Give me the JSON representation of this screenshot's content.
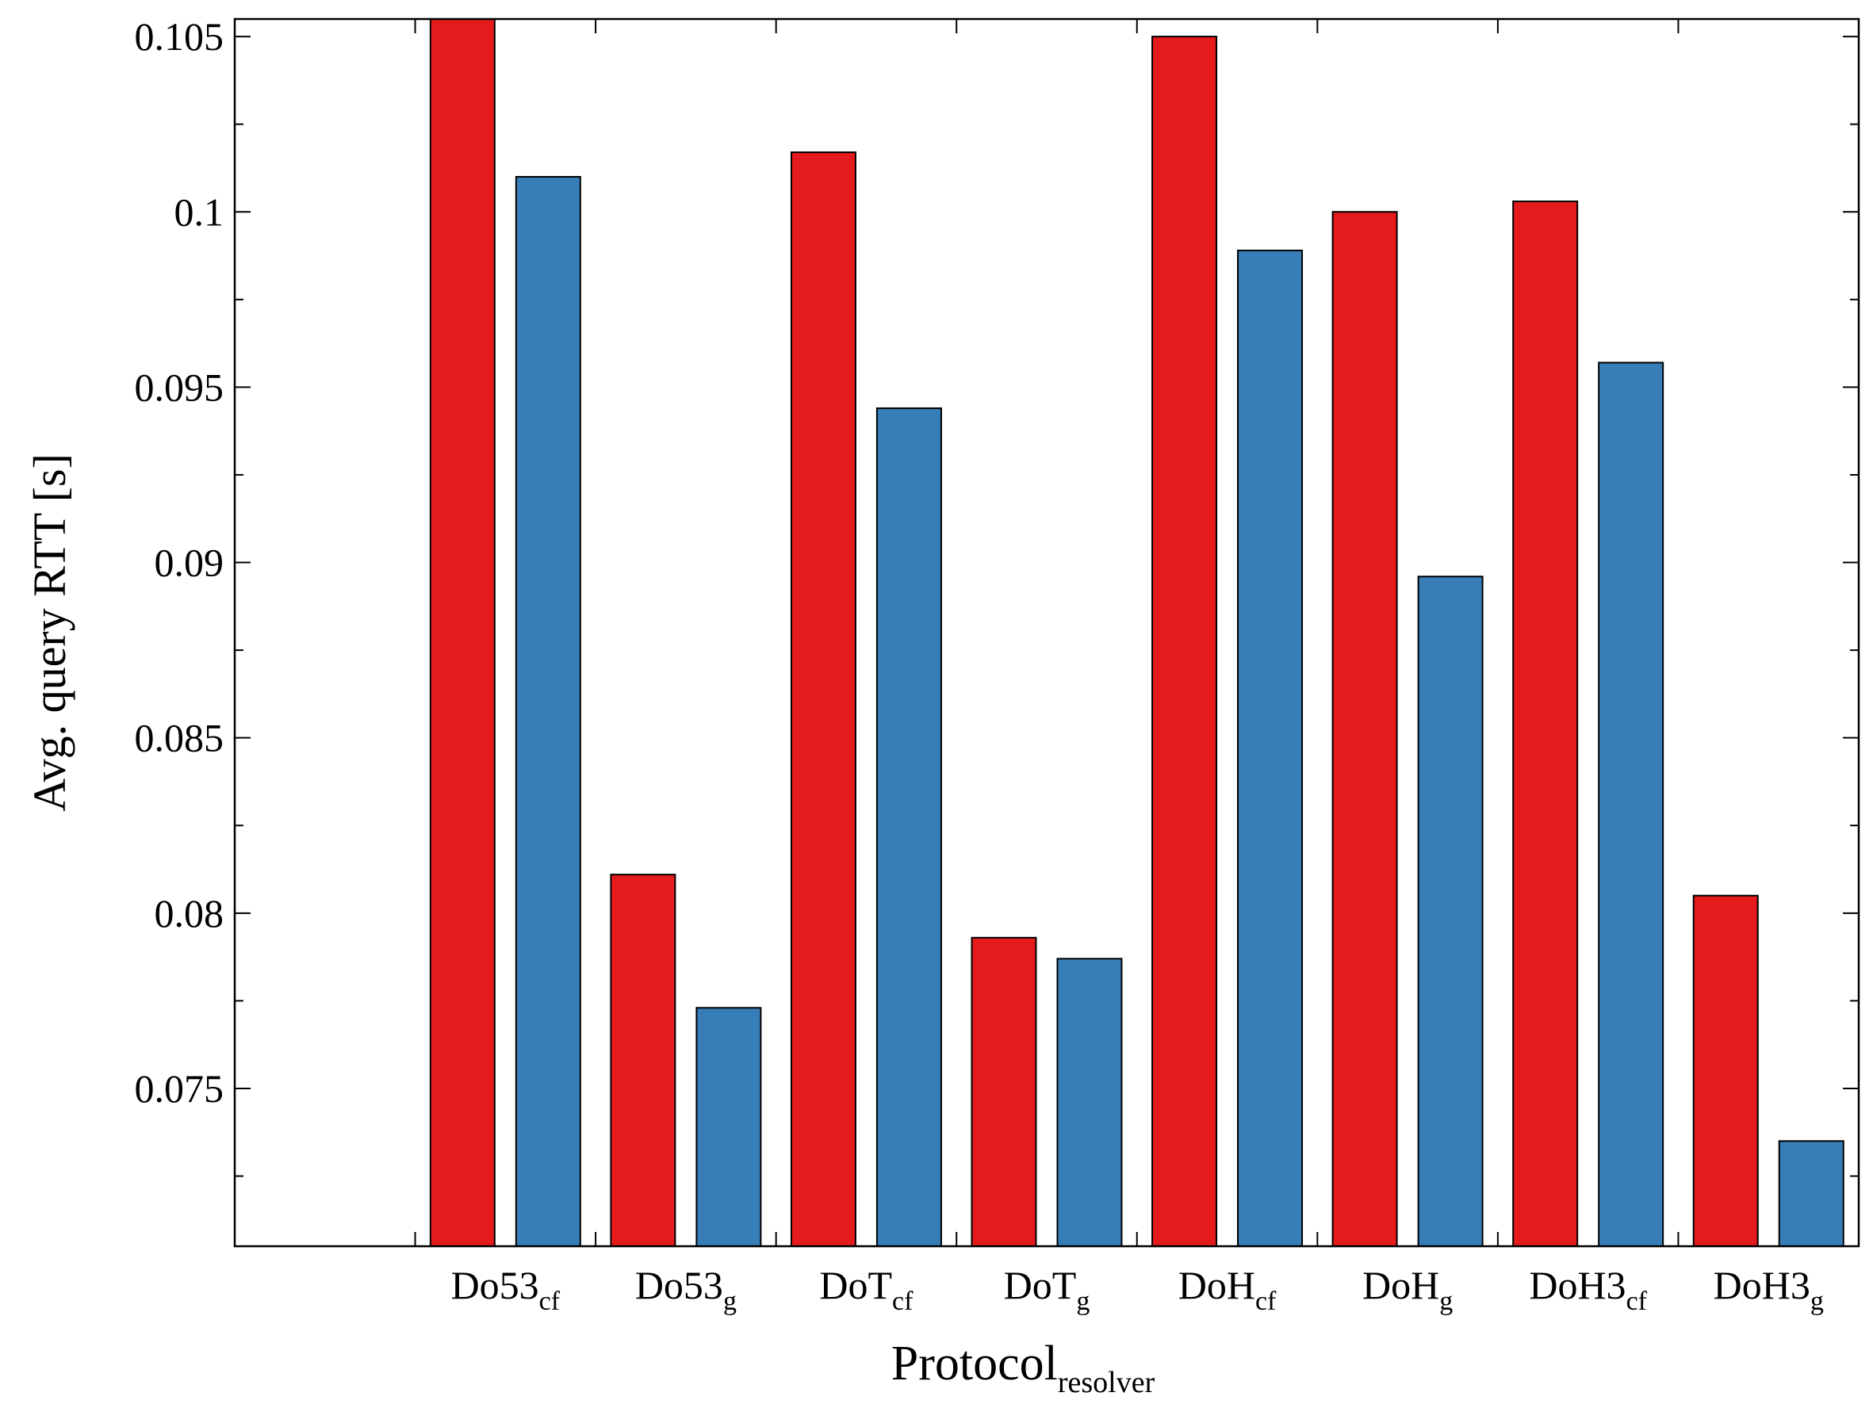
{
  "chart_data": {
    "type": "bar",
    "ylabel": "Avg. query RTT [s]",
    "xlabel": {
      "main": "Protocol",
      "sub": "resolver"
    },
    "categories": [
      {
        "main": "Do53",
        "sub": "cf"
      },
      {
        "main": "Do53",
        "sub": "g"
      },
      {
        "main": "DoT",
        "sub": "cf"
      },
      {
        "main": "DoT",
        "sub": "g"
      },
      {
        "main": "DoH",
        "sub": "cf"
      },
      {
        "main": "DoH",
        "sub": "g"
      },
      {
        "main": "DoH3",
        "sub": "cf"
      },
      {
        "main": "DoH3",
        "sub": "g"
      }
    ],
    "series": [
      {
        "color": "#e41a1c",
        "values": [
          0.1055,
          0.0811,
          0.1017,
          0.0793,
          0.105,
          0.1,
          0.1003,
          0.0805
        ]
      },
      {
        "color": "#377eb8",
        "values": [
          0.101,
          0.0773,
          0.0944,
          0.0787,
          0.0989,
          0.0896,
          0.0957,
          0.0735
        ]
      }
    ],
    "ylim": [
      0.0705,
      0.1055
    ],
    "yticks": [
      {
        "value": 0.075,
        "label": "0.075"
      },
      {
        "value": 0.08,
        "label": "0.08"
      },
      {
        "value": 0.085,
        "label": "0.085"
      },
      {
        "value": 0.09,
        "label": "0.09"
      },
      {
        "value": 0.095,
        "label": "0.095"
      },
      {
        "value": 0.1,
        "label": "0.1"
      },
      {
        "value": 0.105,
        "label": "0.105"
      }
    ],
    "yminor_step": 0.0025,
    "grid": false,
    "legend": "none"
  }
}
